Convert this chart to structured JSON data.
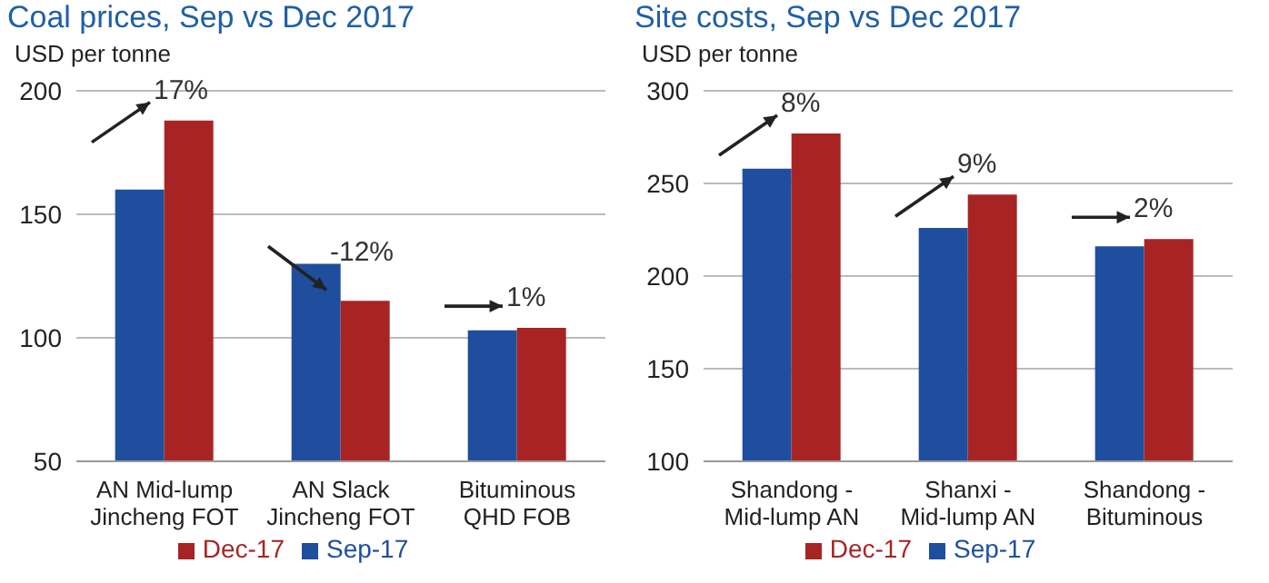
{
  "chart_data": [
    {
      "type": "bar",
      "title": "Coal prices, Sep vs Dec 2017",
      "ylabel": "USD per tonne",
      "categories": [
        "AN Mid-lump Jincheng FOT",
        "AN Slack Jincheng FOT",
        "Bituminous QHD FOB"
      ],
      "series": [
        {
          "name": "Sep-17",
          "color": "#1f4e9e",
          "values": [
            160,
            130,
            103
          ]
        },
        {
          "name": "Dec-17",
          "color": "#a82424",
          "values": [
            188,
            115,
            104
          ]
        }
      ],
      "ylim": [
        50,
        200
      ],
      "yticks": [
        50,
        100,
        150,
        200
      ],
      "grid": "y",
      "legend": "bottom",
      "annotations": [
        {
          "text": "17%",
          "x": "AN Mid-lump Jincheng FOT",
          "y": 188
        },
        {
          "text": "-12%",
          "x": "AN Slack Jincheng FOT",
          "y": 115
        },
        {
          "text": "1%",
          "x": "Bituminous QHD FOB",
          "y": 104
        }
      ]
    },
    {
      "type": "bar",
      "title": "Site costs, Sep vs Dec 2017",
      "ylabel": "USD per tonne",
      "categories": [
        "Shandong - Mid-lump AN",
        "Shanxi - Mid-lump AN",
        "Shandong - Bituminous"
      ],
      "series": [
        {
          "name": "Sep-17",
          "color": "#1f4e9e",
          "values": [
            258,
            226,
            216
          ]
        },
        {
          "name": "Dec-17",
          "color": "#a82424",
          "values": [
            277,
            244,
            220
          ]
        }
      ],
      "ylim": [
        100,
        300
      ],
      "yticks": [
        100,
        150,
        200,
        250,
        300
      ],
      "grid": "y",
      "legend": "bottom",
      "annotations": [
        {
          "text": "8%",
          "x": "Shandong - Mid-lump AN",
          "y": 277
        },
        {
          "text": "9%",
          "x": "Shanxi - Mid-lump AN",
          "y": 244
        },
        {
          "text": "2%",
          "x": "Shandong - Bituminous",
          "y": 220
        }
      ]
    }
  ]
}
